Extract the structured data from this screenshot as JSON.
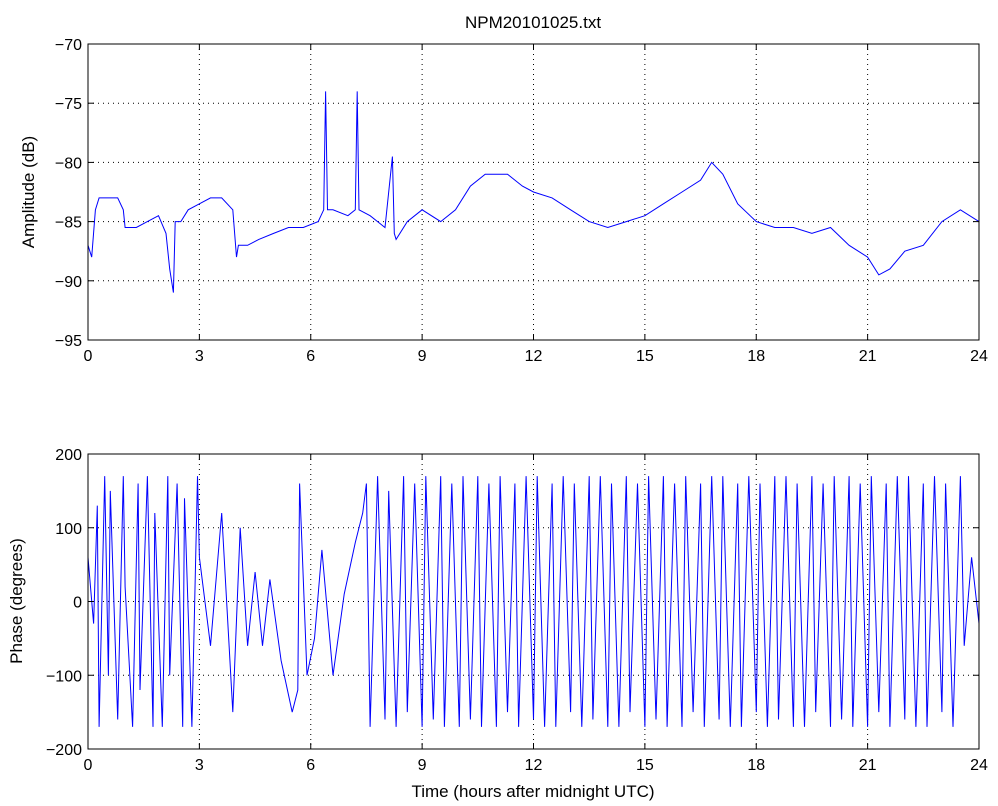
{
  "chart_data": [
    {
      "type": "line",
      "title": "NPM20101025.txt",
      "xlabel": "",
      "ylabel": "Amplitude (dB)",
      "xlim": [
        0,
        24
      ],
      "ylim": [
        -95,
        -70
      ],
      "xticks": [
        0,
        3,
        6,
        9,
        12,
        15,
        18,
        21,
        24
      ],
      "yticks": [
        -95,
        -90,
        -85,
        -80,
        -75,
        -70
      ],
      "grid": true,
      "color": "#0000ff",
      "series": [
        {
          "x": [
            0.0,
            0.1,
            0.2,
            0.3,
            0.5,
            0.8,
            0.95,
            1.0,
            1.3,
            1.6,
            1.9,
            2.1,
            2.2,
            2.3,
            2.35,
            2.5,
            2.7,
            3.0,
            3.3,
            3.6,
            3.9,
            4.0,
            4.05,
            4.3,
            4.6,
            5.0,
            5.4,
            5.8,
            6.2,
            6.35,
            6.4,
            6.45,
            6.6,
            7.0,
            7.2,
            7.25,
            7.3,
            7.6,
            8.0,
            8.2,
            8.25,
            8.3,
            8.6,
            9.0,
            9.5,
            9.9,
            10.3,
            10.7,
            11.0,
            11.3,
            11.7,
            12.0,
            12.5,
            13.0,
            13.5,
            14.0,
            14.5,
            15.0,
            15.5,
            16.0,
            16.5,
            16.8,
            17.1,
            17.5,
            18.0,
            18.5,
            19.0,
            19.5,
            20.0,
            20.5,
            21.0,
            21.3,
            21.6,
            22.0,
            22.5,
            23.0,
            23.5,
            24.0
          ],
          "y": [
            -87,
            -88,
            -84,
            -83,
            -83,
            -83,
            -84,
            -85.5,
            -85.5,
            -85,
            -84.5,
            -86,
            -89,
            -91,
            -85,
            -85,
            -84,
            -83.5,
            -83,
            -83,
            -84,
            -88,
            -87,
            -87,
            -86.5,
            -86,
            -85.5,
            -85.5,
            -85,
            -84,
            -74,
            -84,
            -84,
            -84.5,
            -84,
            -74,
            -84,
            -84.5,
            -85.5,
            -79.5,
            -86,
            -86.5,
            -85,
            -84,
            -85,
            -84,
            -82,
            -81,
            -81,
            -81,
            -82,
            -82.5,
            -83,
            -84,
            -85,
            -85.5,
            -85,
            -84.5,
            -83.5,
            -82.5,
            -81.5,
            -80,
            -81,
            -83.5,
            -85,
            -85.5,
            -85.5,
            -86,
            -85.5,
            -87,
            -88,
            -89.5,
            -89,
            -87.5,
            -87,
            -85,
            -84,
            -85
          ]
        }
      ]
    },
    {
      "type": "line",
      "title": "",
      "xlabel": "Time (hours after midnight UTC)",
      "ylabel": "Phase (degrees)",
      "xlim": [
        0,
        24
      ],
      "ylim": [
        -200,
        200
      ],
      "xticks": [
        0,
        3,
        6,
        9,
        12,
        15,
        18,
        21,
        24
      ],
      "yticks": [
        -200,
        -100,
        0,
        100,
        200
      ],
      "grid": true,
      "color": "#0000ff",
      "series": [
        {
          "x": [
            0.0,
            0.15,
            0.25,
            0.3,
            0.45,
            0.55,
            0.6,
            0.8,
            0.95,
            1.0,
            1.2,
            1.35,
            1.4,
            1.6,
            1.75,
            1.8,
            2.0,
            2.15,
            2.2,
            2.4,
            2.55,
            2.6,
            2.8,
            2.95,
            3.0,
            3.3,
            3.6,
            3.9,
            4.1,
            4.3,
            4.5,
            4.7,
            4.9,
            5.2,
            5.5,
            5.65,
            5.7,
            5.9,
            6.1,
            6.3,
            6.6,
            6.9,
            7.2,
            7.4,
            7.5,
            7.6,
            7.8,
            8.0,
            8.1,
            8.3,
            8.5,
            8.6,
            8.8,
            9.0,
            9.1,
            9.3,
            9.5,
            9.6,
            9.8,
            10.0,
            10.1,
            10.3,
            10.5,
            10.6,
            10.8,
            11.0,
            11.1,
            11.3,
            11.5,
            11.6,
            11.8,
            12.0,
            12.1,
            12.3,
            12.5,
            12.6,
            12.8,
            13.0,
            13.1,
            13.3,
            13.5,
            13.6,
            13.8,
            14.0,
            14.1,
            14.3,
            14.5,
            14.6,
            14.8,
            15.0,
            15.1,
            15.3,
            15.5,
            15.6,
            15.8,
            16.0,
            16.1,
            16.3,
            16.5,
            16.6,
            16.8,
            17.0,
            17.1,
            17.3,
            17.5,
            17.6,
            17.8,
            18.0,
            18.1,
            18.3,
            18.5,
            18.6,
            18.8,
            19.0,
            19.1,
            19.3,
            19.5,
            19.6,
            19.8,
            20.0,
            20.1,
            20.3,
            20.5,
            20.6,
            20.8,
            21.0,
            21.1,
            21.3,
            21.5,
            21.6,
            21.8,
            22.0,
            22.1,
            22.3,
            22.5,
            22.6,
            22.8,
            23.0,
            23.1,
            23.3,
            23.5,
            23.6,
            23.8,
            24.0
          ],
          "y": [
            60,
            -30,
            130,
            -170,
            170,
            -100,
            150,
            -160,
            170,
            20,
            -170,
            160,
            -120,
            170,
            -170,
            120,
            -170,
            170,
            -100,
            160,
            -170,
            140,
            -170,
            170,
            60,
            -60,
            120,
            -150,
            100,
            -60,
            40,
            -60,
            30,
            -80,
            -150,
            -120,
            160,
            -100,
            -50,
            70,
            -100,
            10,
            80,
            120,
            160,
            -170,
            170,
            -160,
            150,
            -170,
            170,
            -150,
            160,
            -170,
            170,
            -160,
            170,
            -170,
            160,
            -170,
            170,
            -160,
            170,
            -170,
            160,
            -170,
            170,
            -150,
            160,
            -170,
            170,
            -160,
            170,
            -170,
            160,
            -170,
            170,
            -150,
            160,
            -170,
            170,
            -160,
            170,
            -170,
            160,
            -170,
            170,
            -150,
            160,
            -170,
            170,
            -160,
            170,
            -170,
            160,
            -170,
            170,
            -150,
            160,
            -170,
            170,
            -160,
            170,
            -170,
            160,
            -170,
            170,
            -150,
            160,
            -170,
            170,
            -160,
            170,
            -170,
            160,
            -170,
            170,
            -150,
            160,
            -170,
            170,
            -160,
            170,
            -170,
            160,
            -170,
            170,
            -150,
            160,
            -170,
            170,
            -160,
            170,
            -170,
            160,
            -170,
            170,
            -150,
            160,
            -170,
            170,
            -60,
            60,
            -30
          ]
        }
      ]
    }
  ]
}
